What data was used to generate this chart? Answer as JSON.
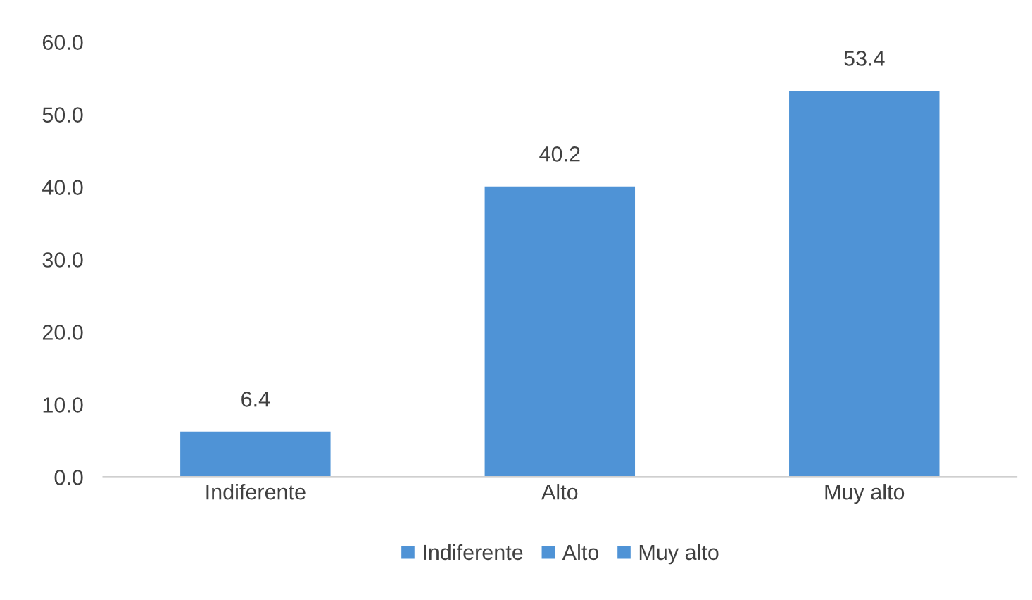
{
  "chart_data": {
    "type": "bar",
    "categories": [
      "Indiferente",
      "Alto",
      "Muy alto"
    ],
    "series": [
      {
        "name": "Indiferente",
        "color": "#4f93d6",
        "values": [
          6.4,
          null,
          null
        ]
      },
      {
        "name": "Alto",
        "color": "#4f93d6",
        "values": [
          null,
          40.2,
          null
        ]
      },
      {
        "name": "Muy alto",
        "color": "#4f93d6",
        "values": [
          null,
          null,
          53.4
        ]
      }
    ],
    "ylim": [
      0,
      60
    ],
    "yticks": [
      {
        "value": 0,
        "label": "0.0"
      },
      {
        "value": 10,
        "label": "10.0"
      },
      {
        "value": 20,
        "label": "20.0"
      },
      {
        "value": 30,
        "label": "30.0"
      },
      {
        "value": 40,
        "label": "40.0"
      },
      {
        "value": 50,
        "label": "50.0"
      },
      {
        "value": 60,
        "label": "60.0"
      }
    ],
    "data_labels": true,
    "grid": false,
    "legend": "bottom"
  }
}
